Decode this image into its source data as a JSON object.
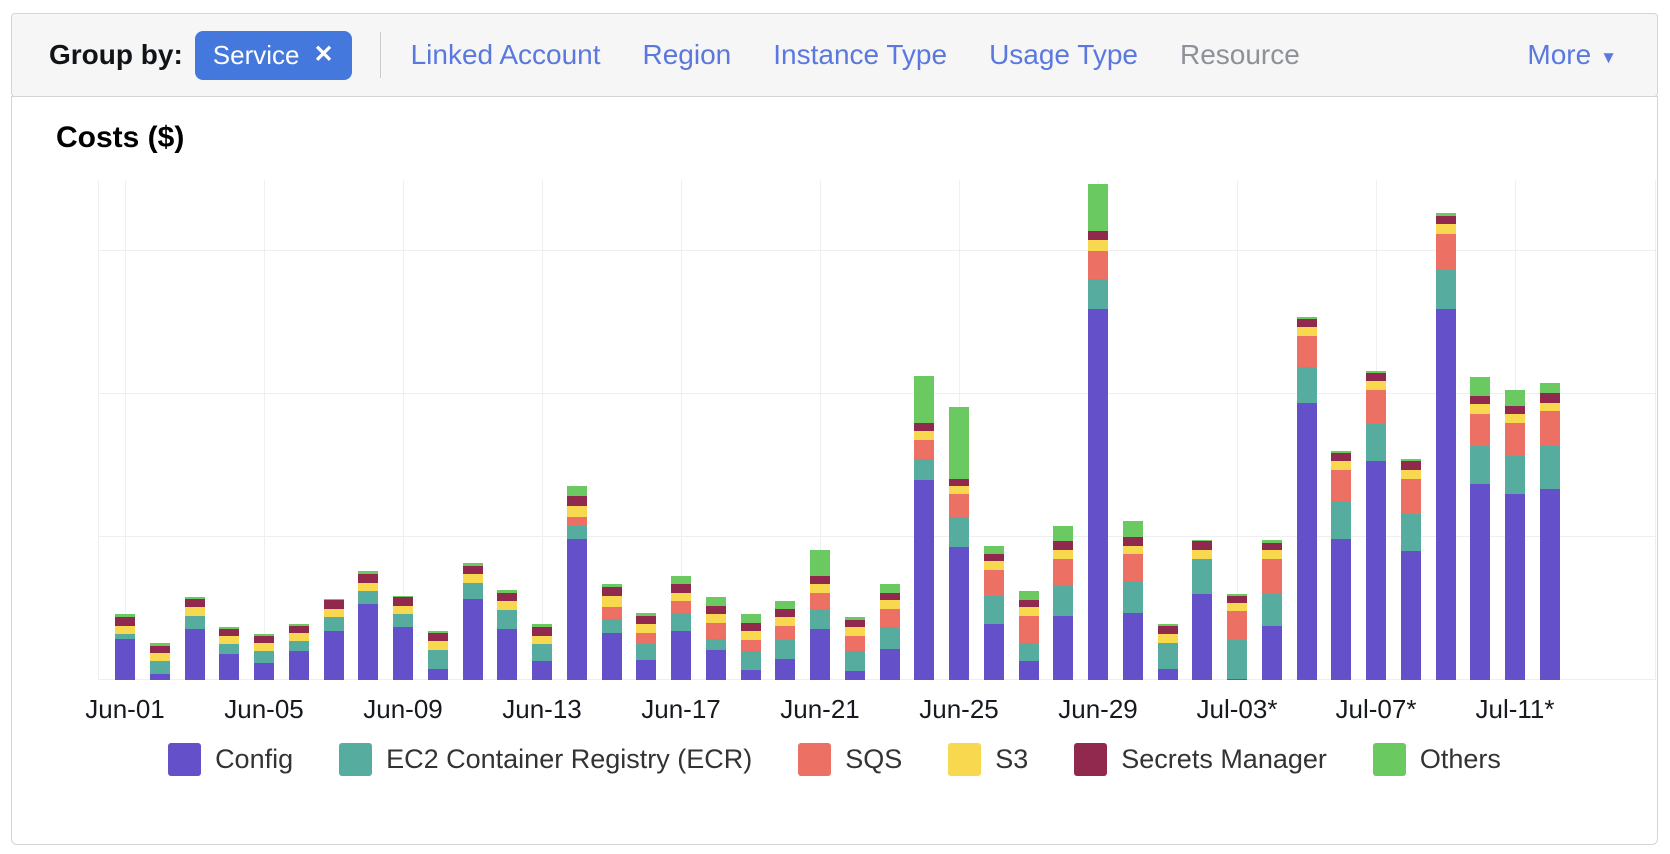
{
  "toolbar": {
    "group_by_label": "Group by:",
    "chip": {
      "label": "Service",
      "close_icon": "✕"
    },
    "links": [
      {
        "label": "Linked Account"
      },
      {
        "label": "Region"
      },
      {
        "label": "Instance Type"
      },
      {
        "label": "Usage Type"
      },
      {
        "label": "Resource"
      }
    ],
    "more": {
      "label": "More",
      "icon": "▼"
    }
  },
  "chart": {
    "title": "Costs ($)"
  },
  "chart_data": {
    "type": "bar",
    "stacked": true,
    "title": "Costs ($)",
    "xlabel": "",
    "ylabel": "Costs ($)",
    "y_axis_tick_labels_shown": false,
    "ylim": [
      0,
      3.5
    ],
    "y_gridline_units": [
      0,
      1,
      2,
      3
    ],
    "grid": true,
    "legend_position": "bottom",
    "categories": [
      "Jun-01",
      "Jun-02",
      "Jun-03",
      "Jun-04",
      "Jun-05",
      "Jun-06",
      "Jun-07",
      "Jun-08",
      "Jun-09",
      "Jun-10",
      "Jun-11",
      "Jun-12",
      "Jun-13",
      "Jun-14",
      "Jun-15",
      "Jun-16",
      "Jun-17",
      "Jun-18",
      "Jun-19",
      "Jun-20",
      "Jun-21",
      "Jun-22",
      "Jun-23",
      "Jun-24",
      "Jun-25",
      "Jun-26",
      "Jun-27",
      "Jun-28",
      "Jun-29",
      "Jun-30",
      "Jul-01",
      "Jul-02",
      "Jul-03",
      "Jul-04",
      "Jul-05",
      "Jul-06",
      "Jul-07",
      "Jul-08",
      "Jul-09",
      "Jul-10",
      "Jul-11",
      "Jul-12"
    ],
    "x_tick_labels": [
      "Jun-01",
      "Jun-05",
      "Jun-09",
      "Jun-13",
      "Jun-17",
      "Jun-21",
      "Jun-25",
      "Jun-29",
      "Jul-03*",
      "Jul-07*",
      "Jul-11*"
    ],
    "x_tick_indices": [
      0,
      4,
      8,
      12,
      16,
      20,
      24,
      28,
      32,
      36,
      40
    ],
    "series": [
      {
        "name": "Config",
        "color": "#6451c9",
        "values": [
          0.29,
          0.04,
          0.36,
          0.18,
          0.12,
          0.2,
          0.34,
          0.53,
          0.37,
          0.08,
          0.57,
          0.36,
          0.13,
          0.99,
          0.33,
          0.14,
          0.34,
          0.21,
          0.07,
          0.15,
          0.36,
          0.06,
          0.22,
          1.4,
          0.93,
          0.39,
          0.13,
          0.45,
          2.6,
          0.47,
          0.08,
          0.6,
          0.01,
          0.38,
          1.94,
          0.99,
          1.53,
          0.9,
          2.6,
          1.37,
          1.3,
          1.34
        ]
      },
      {
        "name": "EC2 Container Registry (ECR)",
        "color": "#57aca0",
        "values": [
          0.03,
          0.09,
          0.09,
          0.07,
          0.08,
          0.07,
          0.1,
          0.09,
          0.09,
          0.13,
          0.11,
          0.13,
          0.12,
          0.09,
          0.1,
          0.11,
          0.13,
          0.08,
          0.13,
          0.13,
          0.14,
          0.14,
          0.15,
          0.15,
          0.21,
          0.2,
          0.13,
          0.21,
          0.21,
          0.22,
          0.18,
          0.25,
          0.27,
          0.22,
          0.25,
          0.26,
          0.26,
          0.26,
          0.27,
          0.27,
          0.27,
          0.3
        ]
      },
      {
        "name": "SQS",
        "color": "#ec7164",
        "values": [
          0,
          0,
          0,
          0,
          0,
          0,
          0,
          0,
          0,
          0,
          0,
          0,
          0,
          0.06,
          0.08,
          0.08,
          0.08,
          0.11,
          0.08,
          0.1,
          0.11,
          0.11,
          0.13,
          0.13,
          0.16,
          0.18,
          0.19,
          0.19,
          0.19,
          0.19,
          0,
          0,
          0.2,
          0.25,
          0.22,
          0.22,
          0.24,
          0.25,
          0.25,
          0.22,
          0.23,
          0.24
        ]
      },
      {
        "name": "S3",
        "color": "#f7d84e",
        "values": [
          0.06,
          0.06,
          0.06,
          0.06,
          0.06,
          0.06,
          0.06,
          0.06,
          0.06,
          0.06,
          0.06,
          0.06,
          0.06,
          0.08,
          0.08,
          0.06,
          0.06,
          0.06,
          0.06,
          0.06,
          0.06,
          0.06,
          0.06,
          0.06,
          0.06,
          0.06,
          0.06,
          0.06,
          0.08,
          0.06,
          0.06,
          0.06,
          0.06,
          0.06,
          0.06,
          0.06,
          0.06,
          0.06,
          0.07,
          0.07,
          0.06,
          0.06
        ]
      },
      {
        "name": "Secrets Manager",
        "color": "#90294d",
        "values": [
          0.06,
          0.05,
          0.06,
          0.05,
          0.05,
          0.05,
          0.06,
          0.06,
          0.06,
          0.06,
          0.06,
          0.06,
          0.06,
          0.07,
          0.06,
          0.06,
          0.06,
          0.06,
          0.06,
          0.06,
          0.06,
          0.05,
          0.05,
          0.06,
          0.05,
          0.05,
          0.05,
          0.06,
          0.06,
          0.06,
          0.06,
          0.06,
          0.05,
          0.05,
          0.06,
          0.06,
          0.06,
          0.06,
          0.06,
          0.06,
          0.06,
          0.07
        ]
      },
      {
        "name": "Others",
        "color": "#6bc961",
        "values": [
          0.02,
          0.02,
          0.01,
          0.01,
          0.01,
          0.01,
          0.01,
          0.02,
          0.01,
          0.01,
          0.02,
          0.02,
          0.02,
          0.07,
          0.02,
          0.02,
          0.06,
          0.06,
          0.06,
          0.05,
          0.18,
          0.02,
          0.06,
          0.33,
          0.5,
          0.06,
          0.06,
          0.11,
          0.33,
          0.11,
          0.01,
          0.01,
          0.01,
          0.02,
          0.01,
          0.01,
          0.01,
          0.02,
          0.02,
          0.13,
          0.11,
          0.07
        ]
      }
    ]
  }
}
